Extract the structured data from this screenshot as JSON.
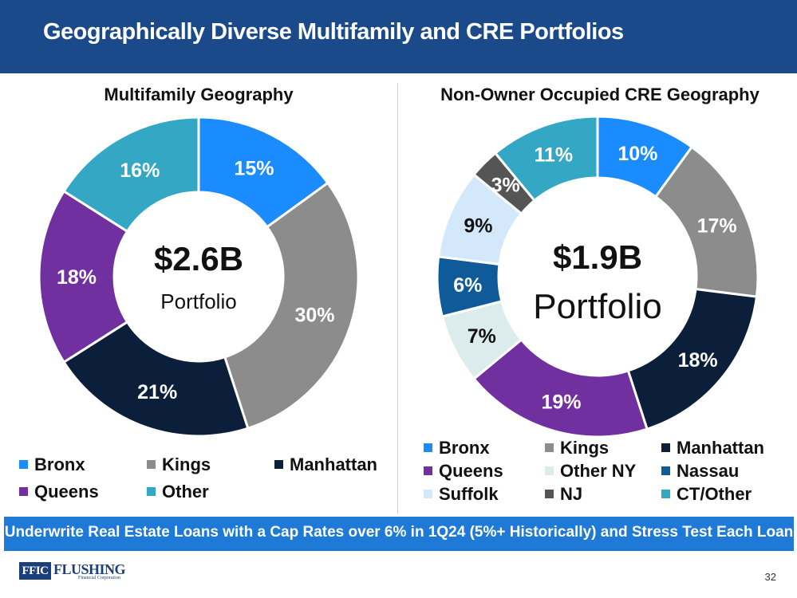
{
  "header": {
    "title": "Geographically Diverse Multifamily and CRE Portfolios"
  },
  "chart_data": [
    {
      "type": "pie",
      "title": "Multifamily Geography",
      "center_value": "$2.6B",
      "center_label": "Portfolio",
      "categories": [
        "Bronx",
        "Kings",
        "Manhattan",
        "Queens",
        "Other"
      ],
      "values": [
        15,
        30,
        21,
        18,
        16
      ],
      "value_labels": [
        "15%",
        "30%",
        "21%",
        "18%",
        "16%"
      ],
      "colors": [
        "#1a8cff",
        "#8c8c8c",
        "#0b1f3a",
        "#7030a0",
        "#33a7c4"
      ],
      "legend": "bottom"
    },
    {
      "type": "pie",
      "title": "Non-Owner Occupied CRE Geography",
      "center_value": "$1.9B",
      "center_label": "Portfolio",
      "categories": [
        "Bronx",
        "Kings",
        "Manhattan",
        "Queens",
        "Other NY",
        "Nassau",
        "Suffolk",
        "NJ",
        "CT/Other"
      ],
      "values": [
        10,
        17,
        18,
        19,
        7,
        6,
        9,
        3,
        11
      ],
      "value_labels": [
        "10%",
        "17%",
        "18%",
        "19%",
        "7%",
        "6%",
        "9%",
        "3%",
        "11%"
      ],
      "colors": [
        "#1a8cff",
        "#8c8c8c",
        "#0b1f3a",
        "#7030a0",
        "#dcecec",
        "#0f5a99",
        "#d3e9fb",
        "#555555",
        "#33a7c4"
      ],
      "legend": "bottom"
    }
  ],
  "banner": {
    "text": "Underwrite Real Estate Loans with a Cap Rates over 6% in 1Q24 (5%+ Historically) and Stress Test Each Loan"
  },
  "logo": {
    "mark": "FFIC",
    "word": "FLUSHING",
    "sub": "Financial Corporation"
  },
  "page_number": "32"
}
